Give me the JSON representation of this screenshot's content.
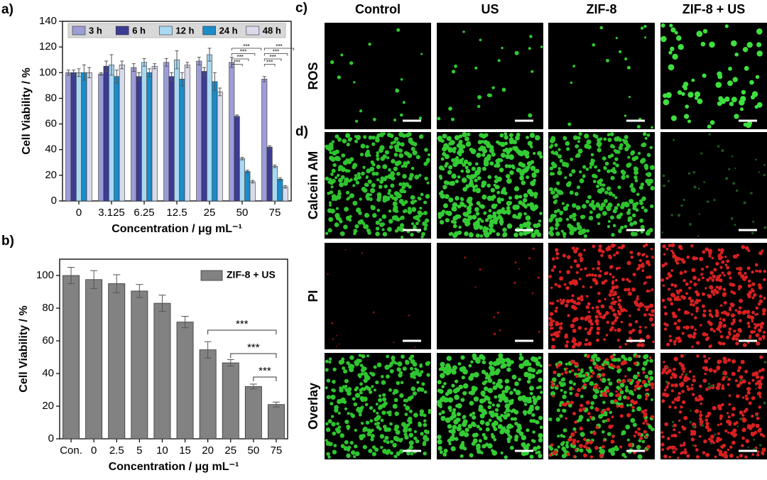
{
  "chart_data": [
    {
      "type": "grouped-bar",
      "panel_label": "a)",
      "ylabel": "Cell Viability / %",
      "xlabel": "Concentration / μg mL⁻¹",
      "categories": [
        "0",
        "3.125",
        "6.25",
        "12.5",
        "25",
        "50",
        "75"
      ],
      "series": [
        {
          "name": "3 h",
          "color": "#9c9cd6",
          "values": [
            100,
            99,
            104,
            108,
            109,
            108,
            95
          ],
          "errors": [
            2,
            1,
            3,
            3,
            3,
            4,
            2
          ]
        },
        {
          "name": "6 h",
          "color": "#3c3c94",
          "values": [
            100,
            105,
            97,
            97,
            101,
            66,
            42
          ],
          "errors": [
            2,
            4,
            3,
            3,
            3,
            1,
            1
          ]
        },
        {
          "name": "12 h",
          "color": "#a9d9f2",
          "values": [
            100,
            106,
            108,
            110,
            114,
            33,
            27
          ],
          "errors": [
            3,
            8,
            3,
            7,
            5,
            1,
            1
          ]
        },
        {
          "name": "24 h",
          "color": "#1a8cc8",
          "values": [
            100,
            97,
            100,
            95,
            93,
            23,
            17
          ],
          "errors": [
            6,
            5,
            3,
            5,
            7,
            1,
            1
          ]
        },
        {
          "name": "48 h",
          "color": "#dadaec",
          "values": [
            100,
            106,
            105,
            106,
            85,
            15,
            11
          ],
          "errors": [
            4,
            3,
            2,
            2,
            3,
            1,
            1
          ]
        }
      ],
      "significance": [
        {
          "category": 5,
          "from_series": 0,
          "to_series": 1,
          "label": "***"
        },
        {
          "category": 5,
          "from_series": 0,
          "to_series": 2,
          "label": "***"
        },
        {
          "category": 5,
          "from_series": 0,
          "to_series": 3,
          "label": "***"
        },
        {
          "category": 5,
          "from_series": 0,
          "to_series": 4,
          "label": "***"
        },
        {
          "category": 6,
          "from_series": 0,
          "to_series": 1,
          "label": "***"
        },
        {
          "category": 6,
          "from_series": 0,
          "to_series": 2,
          "label": "***"
        },
        {
          "category": 6,
          "from_series": 0,
          "to_series": 3,
          "label": "***"
        },
        {
          "category": 6,
          "from_series": 0,
          "to_series": 4,
          "label": "***"
        }
      ],
      "ylim": [
        0,
        140
      ],
      "yticks": [
        0,
        20,
        40,
        60,
        80,
        100,
        120,
        140
      ],
      "legend": "top"
    },
    {
      "type": "bar",
      "panel_label": "b)",
      "ylabel": "Cell Viability / %",
      "xlabel": "Concentration / μg mL⁻¹",
      "categories": [
        "Con.",
        "0",
        "2.5",
        "5",
        "10",
        "15",
        "20",
        "25",
        "50",
        "75"
      ],
      "series": [
        {
          "name": "ZIF-8 + US",
          "color": "#828282",
          "values": [
            100,
            97.5,
            95,
            90.5,
            83,
            71.5,
            54.5,
            46.5,
            32,
            21
          ],
          "errors": [
            5,
            5.5,
            5.5,
            4,
            5,
            3.5,
            5,
            2,
            1.5,
            1.5
          ]
        }
      ],
      "significance": [
        {
          "from_category": 6,
          "to_category": 9,
          "label": "***"
        },
        {
          "from_category": 7,
          "to_category": 9,
          "label": "***"
        },
        {
          "from_category": 8,
          "to_category": 9,
          "label": "***"
        }
      ],
      "ylim": [
        0,
        110
      ],
      "yticks": [
        0,
        20,
        40,
        60,
        80,
        100
      ],
      "legend": "top-right"
    }
  ],
  "microscopy": {
    "label_c": "c)",
    "label_d": "d)",
    "columns": [
      "Control",
      "US",
      "ZIF-8",
      "ZIF-8 + US"
    ],
    "rows": [
      "ROS",
      "Calcein AM",
      "PI",
      "Overlay"
    ]
  }
}
